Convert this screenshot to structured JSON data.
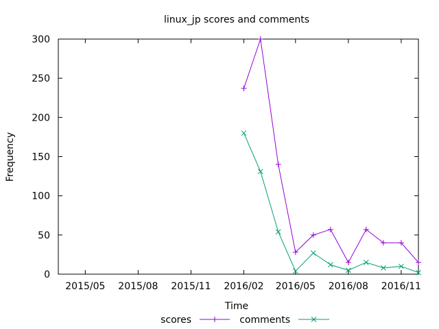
{
  "chart_data": {
    "type": "line",
    "title": "linux_jp scores and comments",
    "xlabel": "Time",
    "ylabel": "Frequency",
    "x_range": [
      "2015-03-15",
      "2016-12-01"
    ],
    "ylim": [
      0,
      300
    ],
    "y_ticks": [
      0,
      50,
      100,
      150,
      200,
      250,
      300
    ],
    "x_ticks": [
      {
        "date": "2015-05-01",
        "label": "2015/05"
      },
      {
        "date": "2015-08-01",
        "label": "2015/08"
      },
      {
        "date": "2015-11-01",
        "label": "2015/11"
      },
      {
        "date": "2016-02-01",
        "label": "2016/02"
      },
      {
        "date": "2016-05-01",
        "label": "2016/05"
      },
      {
        "date": "2016-08-01",
        "label": "2016/08"
      },
      {
        "date": "2016-11-01",
        "label": "2016/11"
      }
    ],
    "grid": false,
    "legend_position": "bottom-center",
    "x": [
      "2016-02-01",
      "2016-03-01",
      "2016-04-01",
      "2016-05-01",
      "2016-06-01",
      "2016-07-01",
      "2016-08-01",
      "2016-09-01",
      "2016-10-01",
      "2016-11-01",
      "2016-12-01"
    ],
    "series": [
      {
        "name": "scores",
        "marker": "+",
        "color": "#9400d3",
        "values": [
          237,
          300,
          140,
          28,
          50,
          57,
          15,
          57,
          40,
          40,
          15
        ]
      },
      {
        "name": "comments",
        "marker": "x",
        "color": "#009e73",
        "values": [
          180,
          131,
          54,
          4,
          27,
          12,
          5,
          15,
          8,
          10,
          2
        ]
      }
    ]
  }
}
